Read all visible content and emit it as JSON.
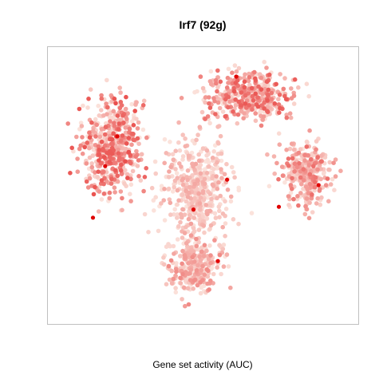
{
  "chart_data": {
    "type": "scatter",
    "title": "Irf7 (92g)",
    "xlabel": "Gene set activity (AUC)",
    "ylabel": "",
    "grid": false,
    "legend": "none",
    "color_scale": {
      "low": "#fbe3dc",
      "high": "#e00000"
    },
    "xlim": [
      0,
      100
    ],
    "ylim": [
      0,
      100
    ],
    "seed": 20231,
    "clusters": [
      {
        "name": "left",
        "cx": 20,
        "cy": 64,
        "sx": 9,
        "sy": 16,
        "n": 520,
        "mean_auc": 0.3,
        "high_pts": [
          [
            18,
            57
          ],
          [
            22,
            68
          ],
          [
            14,
            38
          ]
        ]
      },
      {
        "name": "top-right",
        "cx": 66,
        "cy": 83,
        "sx": 12,
        "sy": 8,
        "n": 440,
        "mean_auc": 0.28,
        "high_pts": [
          [
            61,
            90
          ]
        ]
      },
      {
        "name": "center",
        "cx": 48,
        "cy": 48,
        "sx": 10,
        "sy": 17,
        "n": 460,
        "mean_auc": 0.12,
        "high_pts": [
          [
            58,
            52
          ],
          [
            47,
            41
          ]
        ]
      },
      {
        "name": "right",
        "cx": 84,
        "cy": 54,
        "sx": 7,
        "sy": 11,
        "n": 320,
        "mean_auc": 0.24,
        "high_pts": [
          [
            88,
            50
          ],
          [
            75,
            42
          ]
        ]
      },
      {
        "name": "bottom",
        "cx": 47,
        "cy": 20,
        "sx": 9,
        "sy": 9,
        "n": 300,
        "mean_auc": 0.18,
        "high_pts": [
          [
            55,
            22
          ]
        ]
      }
    ]
  }
}
